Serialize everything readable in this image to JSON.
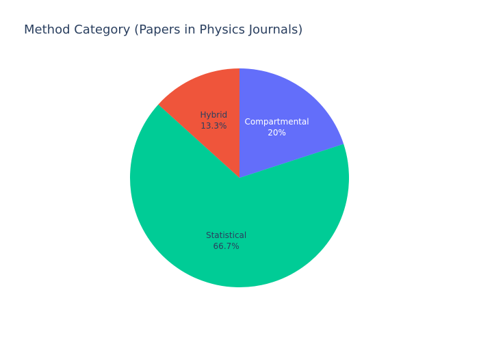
{
  "chart_data": {
    "type": "pie",
    "title": "Method Category (Papers in Physics Journals)",
    "slices": [
      {
        "label": "Compartmental",
        "percent_label": "20%",
        "value": 20.0,
        "color": "#636efa",
        "text_color": "#ffffff"
      },
      {
        "label": "Statistical",
        "percent_label": "66.7%",
        "value": 66.7,
        "color": "#00cc96",
        "text_color": "#2a3f5f"
      },
      {
        "label": "Hybrid",
        "percent_label": "13.3%",
        "value": 13.3,
        "color": "#ef553b",
        "text_color": "#2a3f5f"
      }
    ],
    "direction": "clockwise",
    "start_angle": "top",
    "legend": false
  }
}
